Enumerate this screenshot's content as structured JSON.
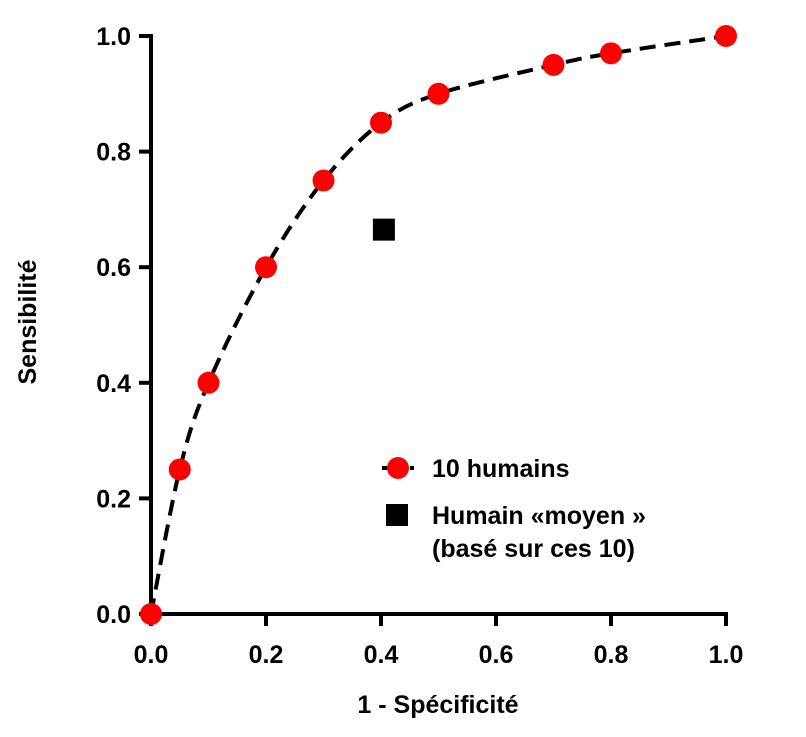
{
  "chart_data": {
    "type": "scatter",
    "title": "",
    "xlabel": "1 - Spécificité",
    "ylabel": "Sensibilité",
    "xlim": [
      0,
      1
    ],
    "ylim": [
      0,
      1
    ],
    "x_ticks": [
      "0.0",
      "0.2",
      "0.4",
      "0.6",
      "0.8",
      "1.0"
    ],
    "y_ticks": [
      "0.0",
      "0.2",
      "0.4",
      "0.6",
      "0.8",
      "1.0"
    ],
    "grid": false,
    "legend_position": "bottom-right",
    "series": [
      {
        "name": "10 humains",
        "marker": "circle",
        "line": "dashed",
        "color": "#ff0000",
        "points": [
          {
            "x": 0.0,
            "y": 0.0
          },
          {
            "x": 0.05,
            "y": 0.25
          },
          {
            "x": 0.1,
            "y": 0.4
          },
          {
            "x": 0.2,
            "y": 0.6
          },
          {
            "x": 0.3,
            "y": 0.75
          },
          {
            "x": 0.4,
            "y": 0.85
          },
          {
            "x": 0.5,
            "y": 0.9
          },
          {
            "x": 0.7,
            "y": 0.95
          },
          {
            "x": 0.8,
            "y": 0.97
          },
          {
            "x": 1.0,
            "y": 1.0
          }
        ]
      },
      {
        "name": "Humain «moyen »",
        "name_line2": "(basé sur ces 10)",
        "marker": "square",
        "color": "#000000",
        "points": [
          {
            "x": 0.405,
            "y": 0.665
          }
        ]
      }
    ]
  }
}
